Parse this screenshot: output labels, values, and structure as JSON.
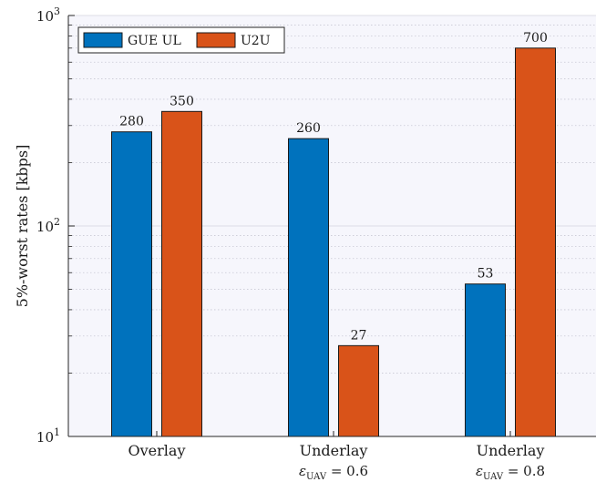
{
  "chart_data": {
    "type": "bar",
    "ylabel": "5%-worst rates [kbps]",
    "yscale": "log",
    "ylim": [
      10,
      1000
    ],
    "grid": true,
    "legend_position": "top-left",
    "categories": [
      "Overlay",
      "Underlay",
      "Underlay"
    ],
    "category_sublabels": [
      "",
      "ε_UAV = 0.6",
      "ε_UAV = 0.8"
    ],
    "yticks": [
      {
        "value": 10,
        "label": "10^1"
      },
      {
        "value": 100,
        "label": "10^2"
      },
      {
        "value": 1000,
        "label": "10^3"
      }
    ],
    "series": [
      {
        "name": "GUE UL",
        "color": "#0072BD",
        "values": [
          280,
          260,
          53
        ]
      },
      {
        "name": "U2U",
        "color": "#D95319",
        "values": [
          350,
          27,
          700
        ]
      }
    ]
  }
}
